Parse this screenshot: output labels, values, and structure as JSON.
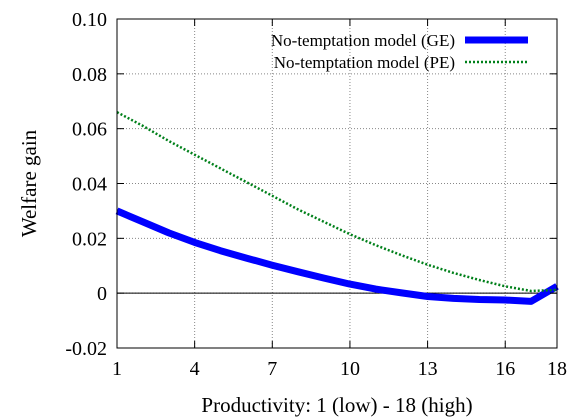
{
  "chart_data": {
    "type": "line",
    "xlabel": "Productivity: 1 (low) - 18 (high)",
    "ylabel": "Welfare gain",
    "xlim": [
      1,
      18
    ],
    "ylim": [
      -0.02,
      0.1
    ],
    "x_ticks": [
      1,
      4,
      7,
      10,
      13,
      16,
      18
    ],
    "y_ticks": [
      {
        "value": -0.02,
        "label": "-0.02"
      },
      {
        "value": 0.0,
        "label": "0"
      },
      {
        "value": 0.02,
        "label": "0.02"
      },
      {
        "value": 0.04,
        "label": "0.04"
      },
      {
        "value": 0.06,
        "label": "0.06"
      },
      {
        "value": 0.08,
        "label": "0.08"
      },
      {
        "value": 0.1,
        "label": "0.10"
      }
    ],
    "grid": true,
    "zero_line": true,
    "legend_position": "top-right",
    "series": [
      {
        "name": "No-temptation model (GE)",
        "color": "#0000ff",
        "style": "solid-thick",
        "x": [
          1,
          2,
          3,
          4,
          5,
          6,
          7,
          8,
          9,
          10,
          11,
          12,
          13,
          14,
          15,
          16,
          17,
          18
        ],
        "values": [
          0.03,
          0.026,
          0.022,
          0.0185,
          0.0155,
          0.0128,
          0.0102,
          0.0078,
          0.0055,
          0.0033,
          0.0015,
          0.0001,
          -0.0012,
          -0.0019,
          -0.0023,
          -0.0025,
          -0.003,
          0.0025
        ]
      },
      {
        "name": "No-temptation model (PE)",
        "color": "#00801a",
        "style": "dotted",
        "x": [
          1,
          2,
          3,
          4,
          5,
          6,
          7,
          8,
          9,
          10,
          11,
          12,
          13,
          14,
          15,
          16,
          17,
          18
        ],
        "values": [
          0.066,
          0.061,
          0.0555,
          0.0505,
          0.0455,
          0.0405,
          0.0355,
          0.0305,
          0.026,
          0.0215,
          0.0175,
          0.0138,
          0.0104,
          0.0074,
          0.0048,
          0.0025,
          0.0008,
          0.0012
        ]
      }
    ]
  }
}
